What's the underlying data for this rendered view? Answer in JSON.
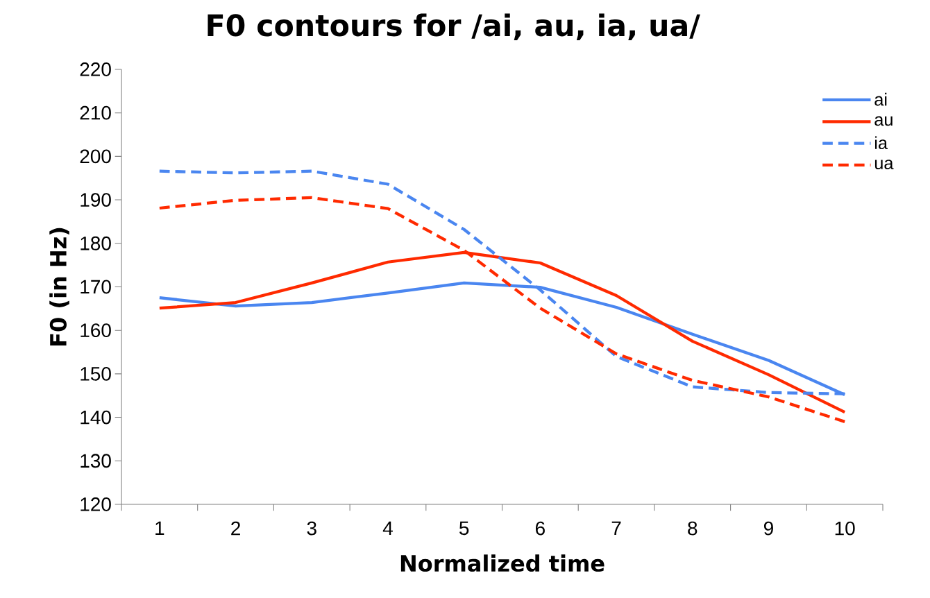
{
  "chart_data": {
    "type": "line",
    "title": "F0 contours for /ai, au, ia, ua/",
    "xlabel": "Normalized time",
    "ylabel": "F0 (in Hz)",
    "categories": [
      "1",
      "2",
      "3",
      "4",
      "5",
      "6",
      "7",
      "8",
      "9",
      "10"
    ],
    "ylim": [
      120,
      220
    ],
    "yticks": [
      120,
      130,
      140,
      150,
      160,
      170,
      180,
      190,
      200,
      210,
      220
    ],
    "legend": "top right",
    "marker": "none",
    "series": [
      {
        "name": "ai",
        "color": "#4a86f0",
        "line_style": "solid",
        "values": [
          167.5,
          165.6,
          166.4,
          168.6,
          170.9,
          169.9,
          165.3,
          159.1,
          153.1,
          145.2
        ]
      },
      {
        "name": "au",
        "color": "#ff2a00",
        "line_style": "solid",
        "values": [
          165.1,
          166.4,
          170.9,
          175.7,
          177.9,
          175.5,
          168.0,
          157.5,
          149.8,
          141.2
        ]
      },
      {
        "name": "ia",
        "color": "#4a86f0",
        "line_style": "dashed",
        "values": [
          196.6,
          196.2,
          196.6,
          193.6,
          183.2,
          169.3,
          154.0,
          147.0,
          145.7,
          145.4
        ]
      },
      {
        "name": "ua",
        "color": "#ff2a00",
        "line_style": "dashed",
        "values": [
          188.1,
          189.9,
          190.5,
          188.0,
          178.4,
          165.1,
          154.6,
          148.5,
          144.7,
          139.0
        ]
      }
    ]
  }
}
